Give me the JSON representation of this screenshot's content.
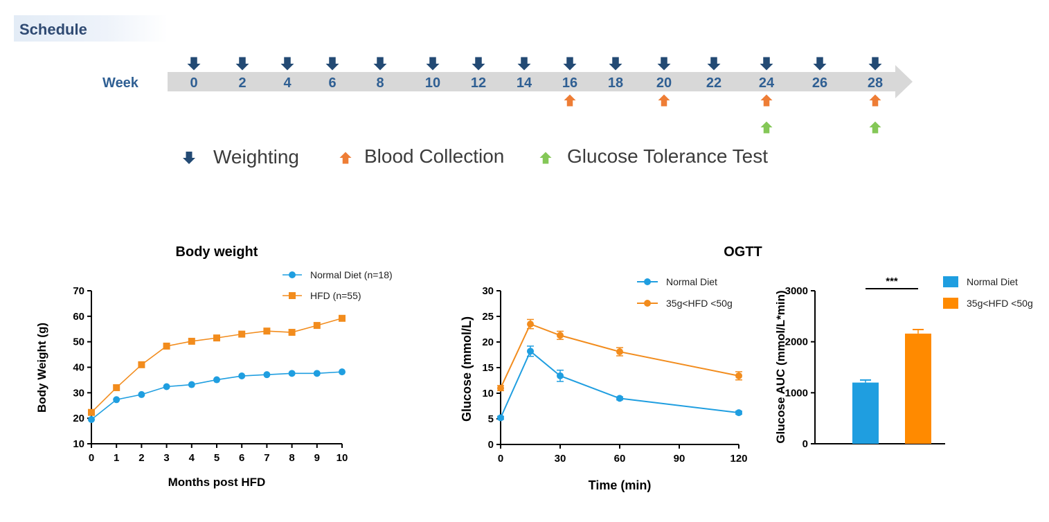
{
  "schedule": {
    "title": "Schedule",
    "axis_label": "Week",
    "weeks": [
      "0",
      "2",
      "4",
      "6",
      "8",
      "10",
      "12",
      "14",
      "16",
      "18",
      "20",
      "22",
      "24",
      "26",
      "28"
    ],
    "blood_collection_weeks": [
      "16",
      "20",
      "24",
      "28"
    ],
    "glucose_tolerance_weeks": [
      "24",
      "28"
    ],
    "legend": {
      "weighting": "Weighting",
      "blood": "Blood Collection",
      "gtt": "Glucose Tolerance Test"
    },
    "colors": {
      "weighting": "#234a74",
      "blood": "#ee7d35",
      "gtt": "#84c757",
      "bar": "#d8d8d8"
    }
  },
  "ogtt_title": "OGTT",
  "chart_data": [
    {
      "id": "body-weight",
      "type": "line",
      "title": "Body weight",
      "xlabel": "Months post HFD",
      "ylabel": "Body Weight (g)",
      "xlim": [
        0,
        10
      ],
      "ylim": [
        10,
        70
      ],
      "xticks": [
        0,
        1,
        2,
        3,
        4,
        5,
        6,
        7,
        8,
        9,
        10
      ],
      "yticks": [
        10,
        20,
        30,
        40,
        50,
        60,
        70
      ],
      "series": [
        {
          "name": "Normal Diet (n=18)",
          "color": "#1f9ee0",
          "marker": "circle",
          "x": [
            0,
            1,
            2,
            3,
            4,
            5,
            6,
            7,
            8,
            9,
            10
          ],
          "y": [
            19.5,
            27.3,
            29.3,
            32.4,
            33.2,
            35.1,
            36.6,
            37.1,
            37.6,
            37.6,
            38.2
          ]
        },
        {
          "name": "HFD (n=55)",
          "color": "#f28c1d",
          "marker": "square",
          "x": [
            0,
            1,
            2,
            3,
            4,
            5,
            6,
            7,
            8,
            9,
            10
          ],
          "y": [
            22.3,
            32,
            41,
            48.3,
            50.2,
            51.5,
            53,
            54.2,
            53.7,
            56.4,
            59.2
          ]
        }
      ]
    },
    {
      "id": "ogtt-curve",
      "type": "line",
      "title": "",
      "xlabel": "Time (min)",
      "ylabel": "Glucose  (mmol/L)",
      "xlim": [
        0,
        120
      ],
      "ylim": [
        0,
        30
      ],
      "xticks": [
        0,
        30,
        60,
        90,
        120
      ],
      "yticks": [
        0,
        5,
        10,
        15,
        20,
        25,
        30
      ],
      "series": [
        {
          "name": "Normal Diet",
          "color": "#1f9ee0",
          "marker": "circle",
          "x": [
            0,
            15,
            30,
            60,
            120
          ],
          "y": [
            5.2,
            18.2,
            13.4,
            9,
            6.2
          ],
          "err": [
            0.3,
            1,
            1.1,
            0.3,
            0.3
          ]
        },
        {
          "name": "35g<HFD <50g",
          "color": "#f28c1d",
          "marker": "circle",
          "x": [
            0,
            15,
            30,
            60,
            120
          ],
          "y": [
            11,
            23.5,
            21.3,
            18.1,
            13.4
          ],
          "err": [
            0.5,
            0.9,
            0.8,
            0.8,
            0.8
          ]
        }
      ]
    },
    {
      "id": "ogtt-auc",
      "type": "bar",
      "title": "",
      "xlabel": "",
      "ylabel": "Glucose AUC (mmol/L*min)",
      "ylim": [
        0,
        3000
      ],
      "yticks": [
        0,
        1000,
        2000,
        3000
      ],
      "categories": [
        "Normal Diet",
        "35g<HFD <50g"
      ],
      "values": [
        1200,
        2160
      ],
      "err": [
        50,
        80
      ],
      "colors": [
        "#1f9ee0",
        "#ff8a00"
      ],
      "annotation": "***"
    }
  ]
}
